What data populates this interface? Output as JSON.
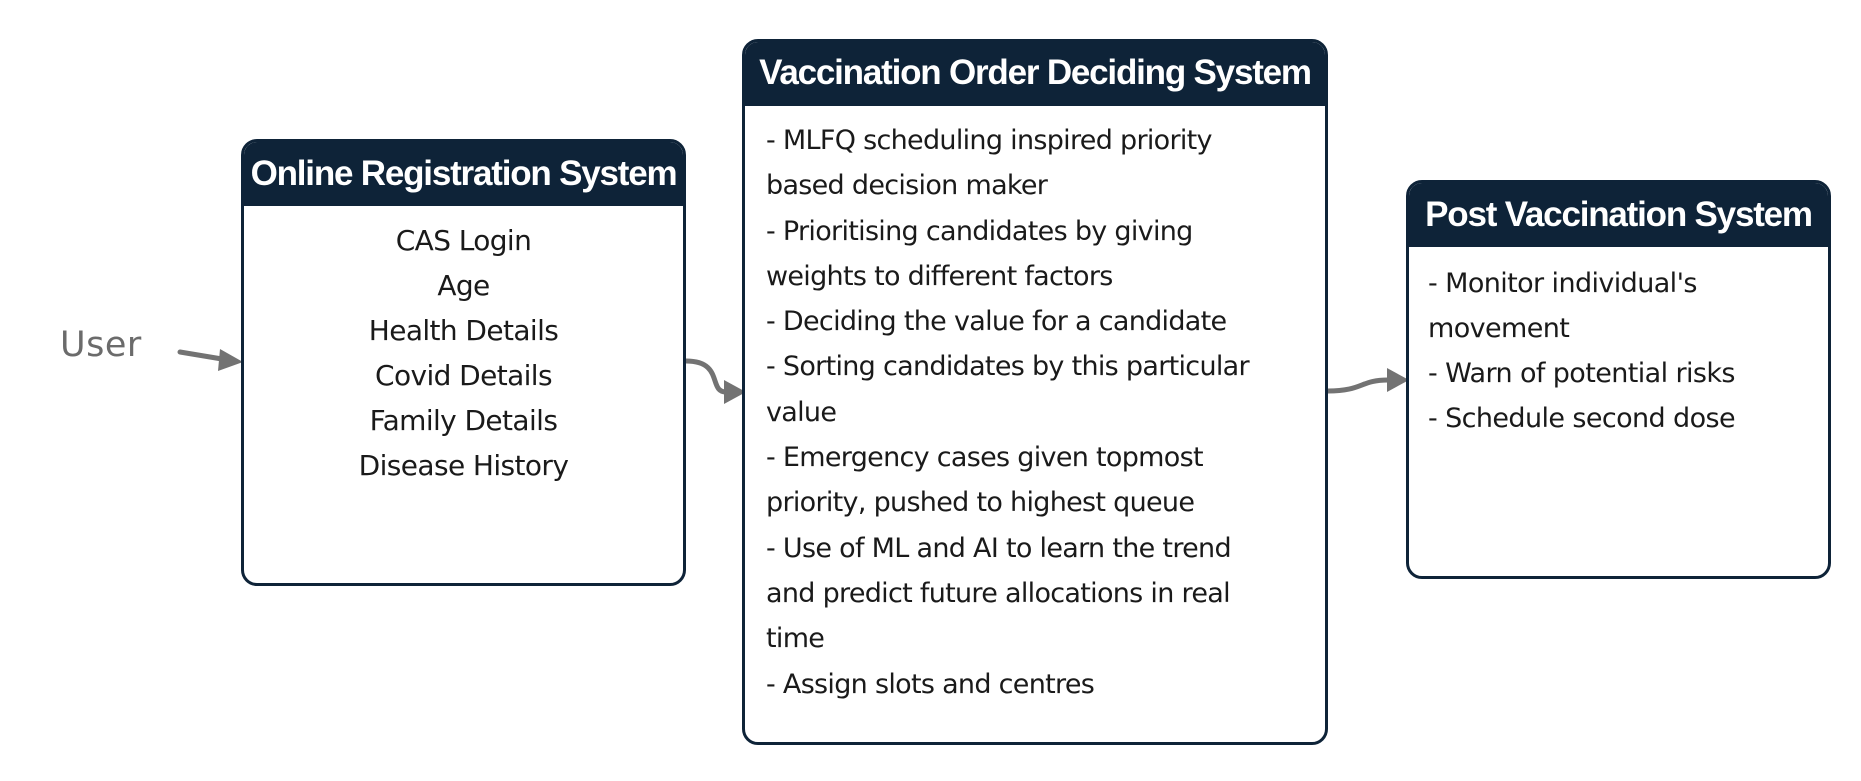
{
  "colors": {
    "box_header": "#0e2338",
    "box_border": "#0e2338",
    "connector": "#737373",
    "user_label": "#6b6b6b",
    "body_text": "#1a1a1a"
  },
  "user": {
    "label": "User"
  },
  "registration": {
    "title": "Online Registration System",
    "items": [
      "CAS Login",
      "Age",
      "Health Details",
      "Covid Details",
      "Family Details",
      "Disease History"
    ]
  },
  "ordering": {
    "title": "Vaccination Order Deciding System",
    "lines": [
      "- MLFQ scheduling inspired priority",
      "based decision maker",
      "- Prioritising candidates by giving",
      "weights to different factors",
      "- Deciding the value for a candidate",
      "- Sorting candidates by this particular",
      "value",
      "- Emergency cases given topmost",
      "priority, pushed to highest queue",
      "- Use of ML and AI to learn the trend",
      "and predict future allocations in real",
      "time",
      "- Assign slots and centres"
    ]
  },
  "post": {
    "title": "Post Vaccination System",
    "lines": [
      "- Monitor individual's",
      "movement",
      "- Warn of potential risks",
      "- Schedule second dose"
    ]
  }
}
